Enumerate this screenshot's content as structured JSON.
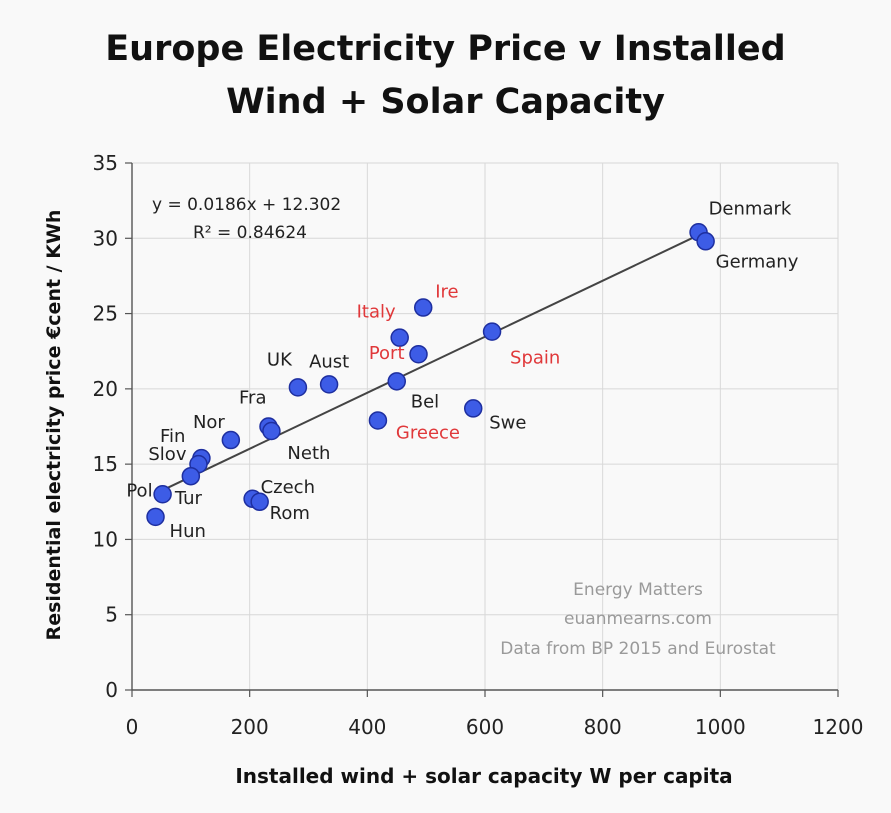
{
  "chart_data": {
    "type": "scatter",
    "title_line1": "Europe Electricity Price v Installed",
    "title_line2": "Wind + Solar Capacity",
    "xlabel": "Installed wind + solar capacity W per capita",
    "ylabel": "Residential electricity price €cent / KWh",
    "xlim": [
      0,
      1200
    ],
    "ylim": [
      0,
      35
    ],
    "xticks": [
      0,
      200,
      400,
      600,
      800,
      1000,
      1200
    ],
    "yticks": [
      0,
      5,
      10,
      15,
      20,
      25,
      30,
      35
    ],
    "grid": true,
    "trendline": {
      "equation": "y = 0.0186x + 12.302",
      "r2": "R² = 0.84624",
      "slope": 0.0186,
      "intercept": 12.302,
      "x_range": [
        40,
        975
      ]
    },
    "watermark": [
      "Energy Matters",
      "euanmearns.com",
      "Data from BP 2015 and Eurostat"
    ],
    "colors": {
      "point": "#3d5ce6",
      "point_edge": "#1e2fa0",
      "label_default": "#222222",
      "label_highlight": "#e0383a",
      "trend": "#444444",
      "grid": "#d8d8d8"
    },
    "points": [
      {
        "label": "Denmark",
        "x": 963,
        "y": 30.4,
        "highlight": false
      },
      {
        "label": "Germany",
        "x": 975,
        "y": 29.8,
        "highlight": false
      },
      {
        "label": "Ire",
        "x": 495,
        "y": 25.4,
        "highlight": true
      },
      {
        "label": "Italy",
        "x": 455,
        "y": 23.4,
        "highlight": true
      },
      {
        "label": "Spain",
        "x": 612,
        "y": 23.8,
        "highlight": true
      },
      {
        "label": "Port",
        "x": 487,
        "y": 22.3,
        "highlight": true
      },
      {
        "label": "Bel",
        "x": 450,
        "y": 20.5,
        "highlight": false
      },
      {
        "label": "Greece",
        "x": 418,
        "y": 17.9,
        "highlight": true
      },
      {
        "label": "Swe",
        "x": 580,
        "y": 18.7,
        "highlight": false
      },
      {
        "label": "UK",
        "x": 282,
        "y": 20.1,
        "highlight": false
      },
      {
        "label": "Aust",
        "x": 335,
        "y": 20.3,
        "highlight": false
      },
      {
        "label": "Fra",
        "x": 232,
        "y": 17.5,
        "highlight": false
      },
      {
        "label": "Neth",
        "x": 237,
        "y": 17.2,
        "highlight": false
      },
      {
        "label": "Nor",
        "x": 168,
        "y": 16.6,
        "highlight": false
      },
      {
        "label": "Fin",
        "x": 118,
        "y": 15.4,
        "highlight": false
      },
      {
        "label": "Slov",
        "x": 113,
        "y": 15.0,
        "highlight": false
      },
      {
        "label": "Tur",
        "x": 100,
        "y": 14.2,
        "highlight": false
      },
      {
        "label": "Pol",
        "x": 52,
        "y": 13.0,
        "highlight": false
      },
      {
        "label": "Hun",
        "x": 40,
        "y": 11.5,
        "highlight": false
      },
      {
        "label": "Czech",
        "x": 205,
        "y": 12.7,
        "highlight": false
      },
      {
        "label": "Rom",
        "x": 217,
        "y": 12.5,
        "highlight": false
      }
    ]
  }
}
